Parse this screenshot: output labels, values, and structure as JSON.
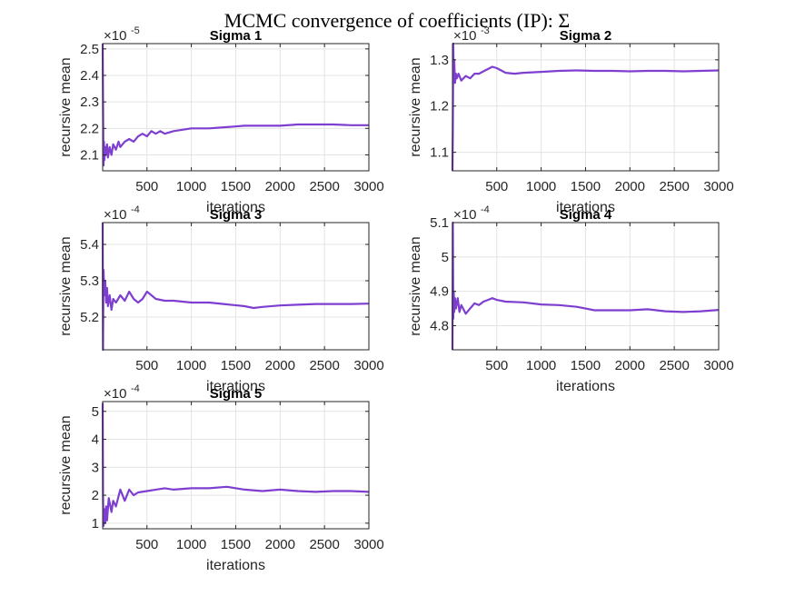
{
  "figure_title": "MCMC convergence of coefficients (IP): Σ",
  "series_color": "#7e3fd0",
  "chart_data": [
    {
      "type": "line",
      "title": "Sigma 1",
      "xlabel": "iterations",
      "ylabel": "recursive mean",
      "exponent_prefix": "×10",
      "exponent": "-5",
      "xlim": [
        1,
        3000
      ],
      "ylim": [
        2.04,
        2.52
      ],
      "xticks": [
        500,
        1000,
        1500,
        2000,
        2500,
        3000
      ],
      "yticks": [
        2.1,
        2.2,
        2.3,
        2.4,
        2.5
      ],
      "ytick_labels": [
        "2.1",
        "2.2",
        "2.3",
        "2.4",
        "2.5"
      ],
      "grid": true,
      "x": [
        1,
        5,
        10,
        15,
        20,
        30,
        40,
        50,
        60,
        80,
        100,
        120,
        150,
        180,
        200,
        250,
        300,
        350,
        400,
        450,
        500,
        550,
        600,
        650,
        700,
        800,
        900,
        1000,
        1200,
        1400,
        1600,
        1800,
        2000,
        2200,
        2400,
        2600,
        2800,
        3000
      ],
      "y": [
        2.52,
        2.3,
        2.06,
        2.15,
        2.08,
        2.13,
        2.1,
        2.14,
        2.09,
        2.13,
        2.1,
        2.14,
        2.12,
        2.15,
        2.13,
        2.15,
        2.16,
        2.15,
        2.17,
        2.18,
        2.17,
        2.19,
        2.18,
        2.19,
        2.18,
        2.19,
        2.195,
        2.2,
        2.2,
        2.205,
        2.21,
        2.21,
        2.21,
        2.215,
        2.215,
        2.215,
        2.212,
        2.212
      ]
    },
    {
      "type": "line",
      "title": "Sigma 2",
      "xlabel": "iterations",
      "ylabel": "recursive mean",
      "exponent_prefix": "×10",
      "exponent": "-3",
      "xlim": [
        1,
        3000
      ],
      "ylim": [
        1.06,
        1.335
      ],
      "xticks": [
        500,
        1000,
        1500,
        2000,
        2500,
        3000
      ],
      "yticks": [
        1.1,
        1.2,
        1.3
      ],
      "ytick_labels": [
        "1.1",
        "1.2",
        "1.3"
      ],
      "grid": true,
      "x": [
        1,
        5,
        10,
        15,
        20,
        30,
        40,
        50,
        70,
        100,
        150,
        200,
        250,
        300,
        350,
        400,
        450,
        500,
        600,
        700,
        800,
        1000,
        1200,
        1400,
        1600,
        1800,
        2000,
        2200,
        2400,
        2600,
        2800,
        3000
      ],
      "y": [
        1.06,
        1.15,
        1.335,
        1.26,
        1.3,
        1.25,
        1.27,
        1.26,
        1.27,
        1.255,
        1.265,
        1.26,
        1.27,
        1.27,
        1.275,
        1.28,
        1.285,
        1.282,
        1.272,
        1.27,
        1.272,
        1.274,
        1.276,
        1.277,
        1.276,
        1.276,
        1.275,
        1.276,
        1.276,
        1.275,
        1.276,
        1.277
      ]
    },
    {
      "type": "line",
      "title": "Sigma 3",
      "xlabel": "iterations",
      "ylabel": "recursive mean",
      "exponent_prefix": "×10",
      "exponent": "-4",
      "xlim": [
        1,
        3000
      ],
      "ylim": [
        5.11,
        5.46
      ],
      "xticks": [
        500,
        1000,
        1500,
        2000,
        2500,
        3000
      ],
      "yticks": [
        5.2,
        5.3,
        5.4
      ],
      "ytick_labels": [
        "5.2",
        "5.3",
        "5.4"
      ],
      "grid": true,
      "x": [
        1,
        5,
        10,
        20,
        30,
        40,
        50,
        60,
        80,
        100,
        120,
        150,
        200,
        250,
        300,
        350,
        400,
        450,
        500,
        600,
        700,
        800,
        1000,
        1200,
        1400,
        1600,
        1700,
        1800,
        2000,
        2200,
        2400,
        2600,
        2800,
        3000
      ],
      "y": [
        5.46,
        5.11,
        5.33,
        5.26,
        5.3,
        5.24,
        5.28,
        5.23,
        5.26,
        5.22,
        5.25,
        5.24,
        5.26,
        5.245,
        5.27,
        5.25,
        5.24,
        5.25,
        5.27,
        5.25,
        5.245,
        5.245,
        5.24,
        5.24,
        5.235,
        5.23,
        5.225,
        5.228,
        5.232,
        5.234,
        5.236,
        5.236,
        5.236,
        5.237
      ]
    },
    {
      "type": "line",
      "title": "Sigma 4",
      "xlabel": "iterations",
      "ylabel": "recursive mean",
      "exponent_prefix": "×10",
      "exponent": "-4",
      "xlim": [
        1,
        3000
      ],
      "ylim": [
        4.73,
        5.1
      ],
      "xticks": [
        500,
        1000,
        1500,
        2000,
        2500,
        3000
      ],
      "yticks": [
        4.8,
        4.9,
        5.0,
        5.1
      ],
      "ytick_labels": [
        "4.8",
        "4.9",
        "5",
        "5.1"
      ],
      "grid": true,
      "x": [
        1,
        5,
        10,
        15,
        20,
        30,
        40,
        60,
        80,
        100,
        150,
        200,
        250,
        300,
        350,
        400,
        450,
        500,
        600,
        800,
        1000,
        1200,
        1400,
        1500,
        1600,
        1800,
        2000,
        2200,
        2400,
        2600,
        2800,
        3000
      ],
      "y": [
        4.73,
        5.1,
        4.82,
        4.9,
        4.84,
        4.88,
        4.85,
        4.88,
        4.84,
        4.86,
        4.835,
        4.85,
        4.865,
        4.86,
        4.87,
        4.875,
        4.88,
        4.875,
        4.87,
        4.868,
        4.862,
        4.86,
        4.855,
        4.85,
        4.845,
        4.845,
        4.845,
        4.848,
        4.842,
        4.84,
        4.842,
        4.846
      ]
    },
    {
      "type": "line",
      "title": "Sigma 5",
      "xlabel": "iterations",
      "ylabel": "recursive mean",
      "exponent_prefix": "×10",
      "exponent": "-4",
      "xlim": [
        1,
        3000
      ],
      "ylim": [
        0.8,
        5.35
      ],
      "xticks": [
        500,
        1000,
        1500,
        2000,
        2500,
        3000
      ],
      "yticks": [
        1,
        2,
        3,
        4,
        5
      ],
      "ytick_labels": [
        "1",
        "2",
        "3",
        "4",
        "5"
      ],
      "grid": true,
      "x": [
        1,
        5,
        10,
        20,
        30,
        40,
        50,
        70,
        100,
        120,
        150,
        200,
        250,
        300,
        350,
        400,
        500,
        600,
        700,
        800,
        1000,
        1200,
        1400,
        1600,
        1800,
        2000,
        2200,
        2400,
        2600,
        2800,
        3000
      ],
      "y": [
        5.3,
        2.0,
        0.9,
        1.5,
        1.0,
        1.6,
        1.1,
        1.9,
        1.4,
        1.8,
        1.6,
        2.2,
        1.8,
        2.2,
        2.0,
        2.1,
        2.15,
        2.2,
        2.25,
        2.2,
        2.25,
        2.25,
        2.3,
        2.2,
        2.15,
        2.2,
        2.15,
        2.12,
        2.15,
        2.15,
        2.12
      ]
    }
  ]
}
